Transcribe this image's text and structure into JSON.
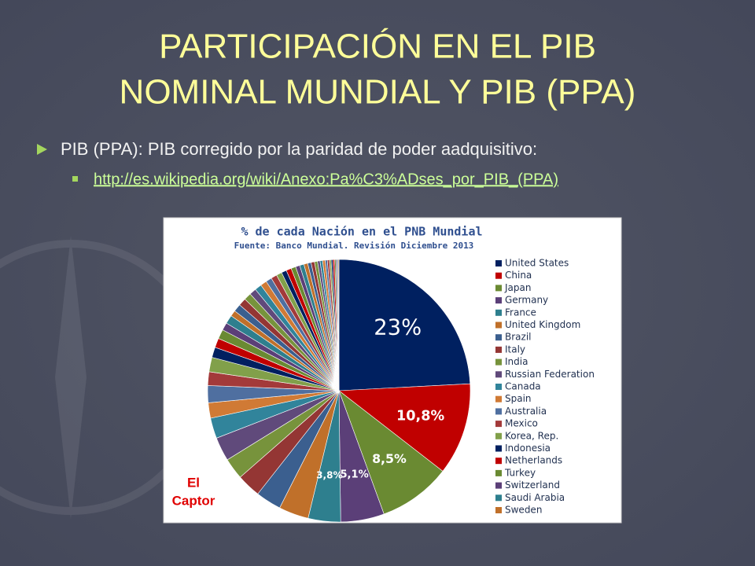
{
  "slide": {
    "title_lines": [
      "PARTICIPACIÓN EN EL PIB",
      "NOMINAL MUNDIAL Y PIB (PPA)"
    ],
    "bullet": "PIB (PPA): PIB corregido por la paridad de poder aadquisitivo:",
    "link": "http://es.wikipedia.org/wiki/Anexo:Pa%C3%ADses_por_PIB_(PPA)",
    "watermark_lines": [
      "El",
      "Captor"
    ]
  },
  "chart_data": {
    "type": "pie",
    "title": "% de cada Nación en el  PNB Mundial",
    "subtitle": "Fuente: Banco Mundial. Revisión Diciembre 2013",
    "categories": [
      "United States",
      "China",
      "Japan",
      "Germany",
      "France",
      "United Kingdom",
      "Brazil",
      "Italy",
      "India",
      "Russian Federation",
      "Canada",
      "Spain",
      "Australia",
      "Mexico",
      "Korea, Rep.",
      "Indonesia",
      "Netherlands",
      "Turkey",
      "Switzerland",
      "Saudi Arabia",
      "Sweden",
      null,
      null,
      null,
      null,
      null,
      null,
      null,
      null,
      null,
      null,
      null,
      null,
      null,
      null,
      null,
      null,
      null,
      null,
      null,
      null,
      null,
      null,
      null,
      null,
      null,
      null,
      null,
      null,
      null,
      null
    ],
    "values": [
      23,
      10.8,
      8.5,
      5.1,
      3.8,
      3.5,
      3.0,
      2.8,
      2.5,
      2.8,
      2.4,
      1.8,
      2.0,
      1.6,
      1.7,
      1.2,
      1.1,
      1.1,
      0.9,
      1.0,
      0.7,
      0.9,
      0.9,
      0.85,
      0.8,
      0.8,
      0.75,
      0.7,
      0.7,
      0.65,
      0.6,
      0.6,
      0.55,
      0.5,
      0.5,
      0.45,
      0.4,
      0.4,
      0.35,
      0.3,
      0.3,
      0.3,
      0.25,
      0.25,
      0.2,
      0.2,
      0.2,
      0.15,
      0.15,
      0.1,
      0.1
    ],
    "value_labels": [
      "23%",
      "10,8%",
      "8,5%",
      "5,1%",
      "3,8%",
      null,
      null,
      null,
      null,
      null,
      null,
      null,
      null,
      null,
      null,
      null,
      null,
      null,
      null,
      null,
      null,
      null,
      null,
      null,
      null,
      null,
      null,
      null,
      null,
      null,
      null,
      null,
      null,
      null,
      null,
      null,
      null,
      null,
      null,
      null,
      null,
      null,
      null,
      null,
      null,
      null,
      null,
      null,
      null,
      null,
      null
    ],
    "colors": [
      "#002060",
      "#c00000",
      "#6a8a32",
      "#5b3f78",
      "#2e7f8e",
      "#c0702a",
      "#3b5f8f",
      "#943634",
      "#77933c",
      "#604a7b",
      "#31849b",
      "#d07a35",
      "#4f6fa0",
      "#a33a3a",
      "#81a04a"
    ]
  }
}
